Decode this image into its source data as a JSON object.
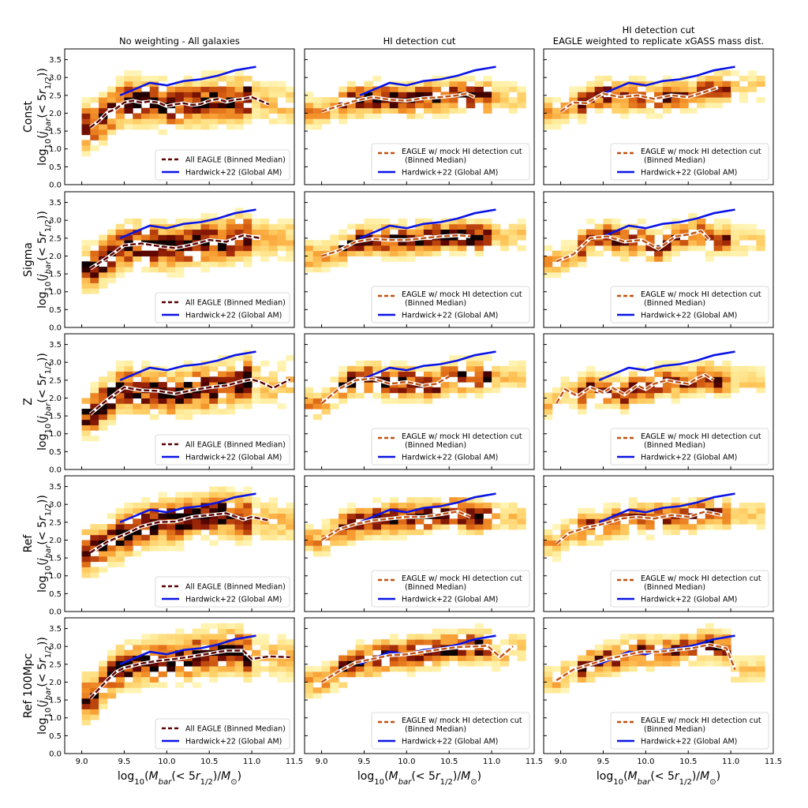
{
  "figure": {
    "column_titles": [
      [
        "No weighting - All galaxies"
      ],
      [
        "HI detection cut"
      ],
      [
        "HI detection cut",
        "EAGLE weighted to replicate xGASS mass dist."
      ]
    ],
    "row_labels": [
      "Const",
      "Sigma",
      "Z",
      "Ref",
      "Ref 100Mpc"
    ],
    "ylabel_math": "log10(j_bar(< 5r_1/2))",
    "xlabel_math": "log10(M_bar(< 5r_1/2)/M_sun)",
    "legend_all": "All EAGLE (Binned Median)",
    "legend_cut_1": "EAGLE w/ mock HI detection cut",
    "legend_cut_2": "(Binned Median)",
    "legend_ref": "Hardwick+22 (Global AM)",
    "colors": {
      "hardwick": "#0a14e6",
      "median_all": "#5a0000",
      "median_cut": "#c05010",
      "heat_low": "#fffbd0",
      "heat_high": "#000000"
    }
  },
  "chart_data": {
    "type": "heatmap",
    "xlim": [
      8.8,
      11.5
    ],
    "ylim": [
      0.0,
      3.8
    ],
    "xticks": [
      "9.0",
      "9.5",
      "10.0",
      "10.5",
      "11.0",
      "11.5"
    ],
    "yticks": [
      "0.0",
      "0.5",
      "1.0",
      "1.5",
      "2.0",
      "2.5",
      "3.0",
      "3.5"
    ],
    "hardwick": {
      "x": [
        9.45,
        9.6,
        9.8,
        10.0,
        10.2,
        10.4,
        10.6,
        10.8,
        11.05
      ],
      "y": [
        2.5,
        2.65,
        2.85,
        2.78,
        2.9,
        2.95,
        3.05,
        3.2,
        3.3
      ]
    },
    "medians": [
      [
        {
          "x": [
            9.1,
            9.2,
            9.3,
            9.4,
            9.5,
            9.6,
            9.7,
            9.8,
            9.9,
            10.0,
            10.1,
            10.2,
            10.3,
            10.4,
            10.5,
            10.6,
            10.7,
            10.8,
            10.9,
            11.0,
            11.1,
            11.2
          ],
          "y": [
            1.6,
            1.78,
            2.02,
            2.12,
            2.3,
            2.35,
            2.3,
            2.33,
            2.3,
            2.2,
            2.25,
            2.28,
            2.23,
            2.26,
            2.35,
            2.4,
            2.32,
            2.38,
            2.4,
            2.45,
            2.35,
            2.25
          ]
        },
        {
          "x": [
            9.0,
            9.2,
            9.4,
            9.6,
            9.8,
            10.0,
            10.2,
            10.4,
            10.6,
            10.7,
            10.8
          ],
          "y": [
            2.05,
            2.2,
            2.35,
            2.45,
            2.38,
            2.35,
            2.42,
            2.45,
            2.5,
            2.55,
            2.45
          ]
        },
        {
          "x": [
            9.0,
            9.15,
            9.3,
            9.5,
            9.7,
            9.9,
            10.1,
            10.3,
            10.5,
            10.7,
            10.85
          ],
          "y": [
            2.05,
            2.3,
            2.28,
            2.55,
            2.45,
            2.5,
            2.4,
            2.5,
            2.45,
            2.6,
            2.72
          ]
        }
      ],
      [
        {
          "x": [
            9.1,
            9.3,
            9.5,
            9.7,
            9.9,
            10.1,
            10.3,
            10.5,
            10.7,
            10.9,
            11.1
          ],
          "y": [
            1.65,
            1.95,
            2.3,
            2.35,
            2.28,
            2.22,
            2.32,
            2.45,
            2.4,
            2.58,
            2.5
          ]
        },
        {
          "x": [
            9.0,
            9.2,
            9.4,
            9.6,
            9.8,
            10.0,
            10.2,
            10.4,
            10.6,
            10.75
          ],
          "y": [
            2.0,
            2.15,
            2.4,
            2.48,
            2.45,
            2.45,
            2.5,
            2.55,
            2.58,
            2.55
          ]
        },
        {
          "x": [
            8.95,
            9.15,
            9.35,
            9.55,
            9.75,
            9.95,
            10.15,
            10.35,
            10.5,
            10.65,
            10.75
          ],
          "y": [
            1.85,
            2.05,
            2.5,
            2.55,
            2.4,
            2.45,
            2.2,
            2.55,
            2.6,
            2.7,
            2.45
          ]
        }
      ],
      [
        {
          "x": [
            9.1,
            9.3,
            9.5,
            9.7,
            9.9,
            10.1,
            10.3,
            10.5,
            10.7,
            10.9,
            11.0,
            11.1,
            11.25,
            11.45
          ],
          "y": [
            1.55,
            1.95,
            2.3,
            2.22,
            2.2,
            2.12,
            2.22,
            2.3,
            2.35,
            2.48,
            2.52,
            2.45,
            2.28,
            2.52
          ]
        },
        {
          "x": [
            9.0,
            9.2,
            9.4,
            9.6,
            9.8,
            10.0,
            10.2,
            10.35,
            10.5
          ],
          "y": [
            1.85,
            2.25,
            2.5,
            2.55,
            2.4,
            2.45,
            2.35,
            2.4,
            2.6
          ]
        },
        {
          "x": [
            8.95,
            9.05,
            9.2,
            9.35,
            9.5,
            9.6,
            9.75,
            9.9,
            10.0,
            10.1,
            10.25,
            10.35,
            10.5,
            10.6,
            10.7,
            10.8
          ],
          "y": [
            1.85,
            2.25,
            2.05,
            2.3,
            2.15,
            2.3,
            2.1,
            2.35,
            2.25,
            2.4,
            2.5,
            2.45,
            2.4,
            2.55,
            2.65,
            2.5
          ]
        }
      ],
      [
        {
          "x": [
            9.1,
            9.3,
            9.5,
            9.7,
            9.9,
            10.1,
            10.3,
            10.5,
            10.7,
            10.9,
            11.0,
            11.2
          ],
          "y": [
            1.65,
            1.95,
            2.15,
            2.38,
            2.5,
            2.52,
            2.65,
            2.7,
            2.75,
            2.58,
            2.65,
            2.55
          ]
        },
        {
          "x": [
            9.0,
            9.2,
            9.4,
            9.6,
            9.8,
            10.0,
            10.2,
            10.4,
            10.6,
            10.75
          ],
          "y": [
            2.0,
            2.3,
            2.45,
            2.55,
            2.6,
            2.65,
            2.65,
            2.72,
            2.8,
            2.65
          ]
        },
        {
          "x": [
            8.95,
            9.1,
            9.3,
            9.5,
            9.7,
            9.9,
            10.1,
            10.3,
            10.5,
            10.7,
            10.9
          ],
          "y": [
            1.9,
            2.2,
            2.35,
            2.45,
            2.6,
            2.65,
            2.6,
            2.7,
            2.65,
            2.8,
            2.7
          ]
        }
      ],
      [
        {
          "x": [
            9.1,
            9.2,
            9.3,
            9.4,
            9.5,
            9.7,
            9.9,
            10.1,
            10.3,
            10.5,
            10.7,
            10.9,
            11.0,
            11.2,
            11.45
          ],
          "y": [
            1.55,
            1.8,
            2.05,
            2.28,
            2.4,
            2.52,
            2.6,
            2.65,
            2.72,
            2.8,
            2.88,
            2.88,
            2.65,
            2.72,
            2.7
          ]
        },
        {
          "x": [
            9.0,
            9.2,
            9.4,
            9.6,
            9.8,
            10.0,
            10.2,
            10.4,
            10.6,
            10.8,
            10.95,
            11.1,
            11.25
          ],
          "y": [
            2.0,
            2.3,
            2.55,
            2.65,
            2.75,
            2.78,
            2.85,
            2.92,
            2.98,
            3.0,
            3.02,
            2.7,
            3.0
          ]
        },
        {
          "x": [
            8.95,
            9.15,
            9.35,
            9.55,
            9.75,
            9.95,
            10.15,
            10.35,
            10.55,
            10.75,
            10.85,
            10.95,
            11.05
          ],
          "y": [
            2.05,
            2.35,
            2.5,
            2.65,
            2.75,
            2.85,
            2.85,
            2.9,
            2.95,
            3.05,
            3.0,
            2.95,
            2.35
          ]
        }
      ]
    ]
  }
}
